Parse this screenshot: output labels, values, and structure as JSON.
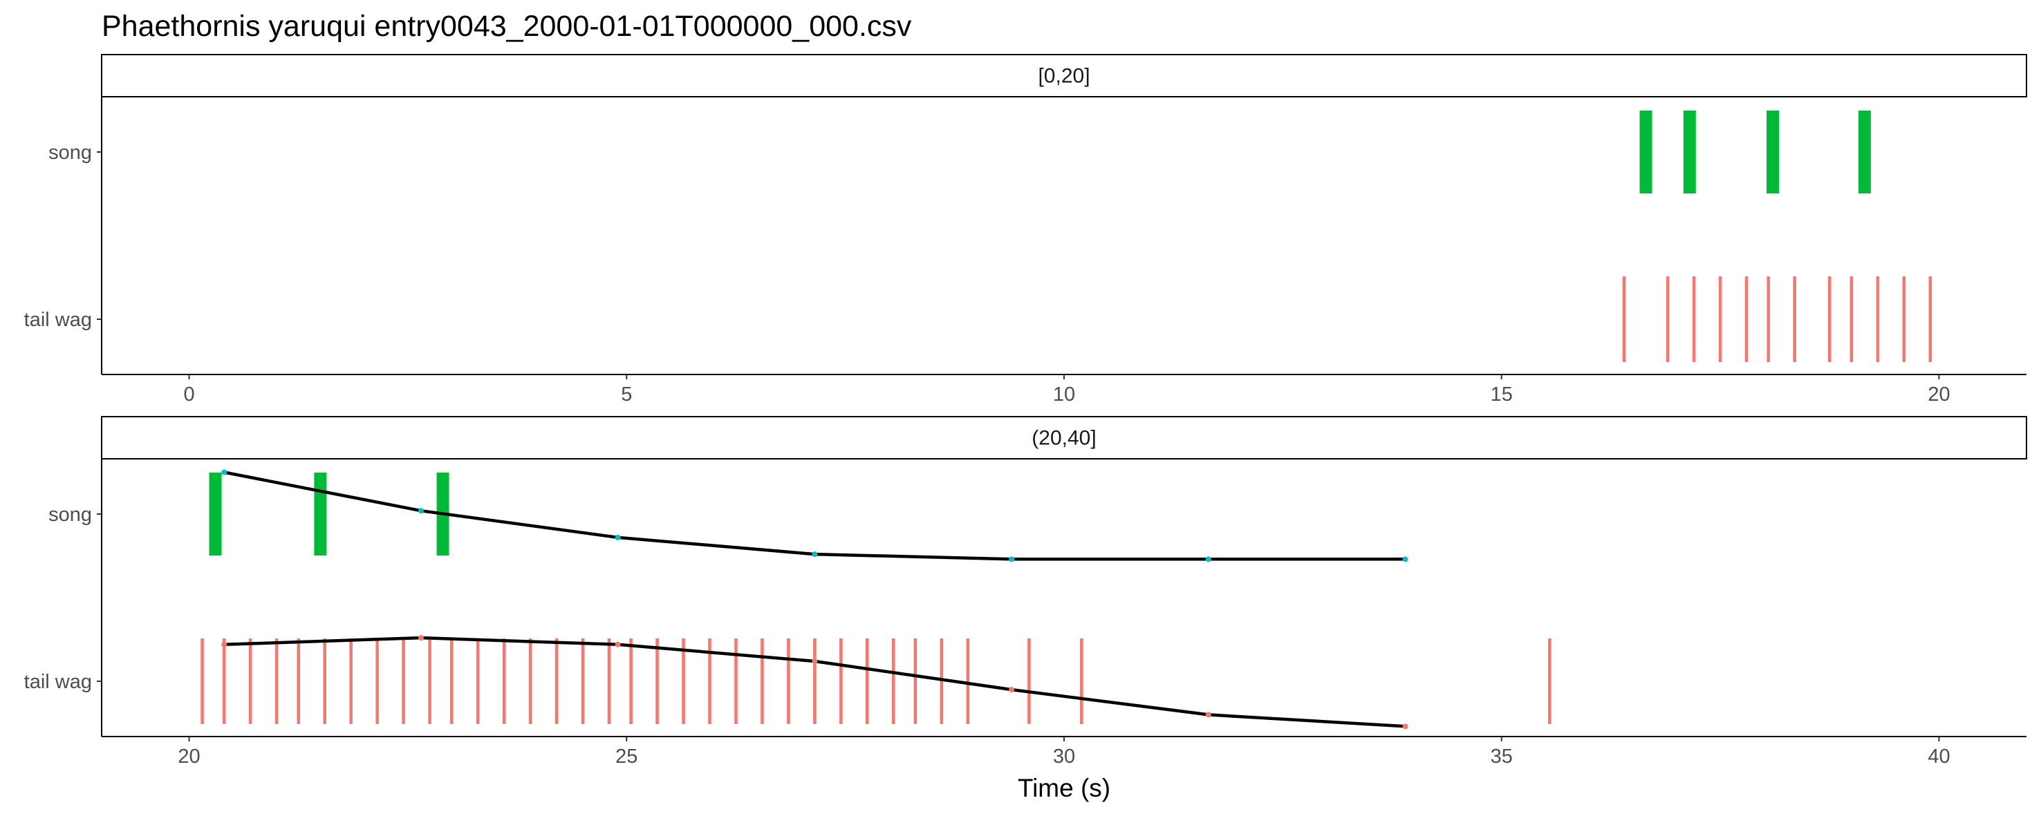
{
  "title": "Phaethornis yaruqui   entry0043_2000-01-01T000000_000.csv",
  "colors": {
    "song": "#00BA38",
    "tail_wag": "#F8766D",
    "trend_line": "#000000",
    "song_trend_points": "#00BFC4",
    "tail_trend_points": "#F8766D",
    "panel_border": "#000000",
    "tick_text": "#4d4d4d"
  },
  "chart_data": {
    "type": "scatter",
    "x_label": "Time (s)",
    "y_categories": [
      "song",
      "tail wag"
    ],
    "grid": false,
    "legend": "none",
    "panels": [
      {
        "strip": "[0,20]",
        "xlim": [
          -1,
          21
        ],
        "x_ticks": [
          0,
          5,
          10,
          15,
          20
        ],
        "song_events": [
          16.65,
          17.15,
          18.1,
          19.15
        ],
        "tail_wag_events": [
          16.4,
          16.9,
          17.2,
          17.5,
          17.8,
          18.05,
          18.35,
          18.75,
          19.0,
          19.3,
          19.6,
          19.9
        ],
        "song_trend": [],
        "tail_wag_trend": []
      },
      {
        "strip": "(20,40]",
        "xlim": [
          19,
          41
        ],
        "x_ticks": [
          20,
          25,
          30,
          35,
          40
        ],
        "song_events": [
          20.3,
          21.5,
          22.9
        ],
        "tail_wag_events": [
          20.15,
          20.4,
          20.7,
          21.0,
          21.25,
          21.55,
          21.85,
          22.15,
          22.45,
          22.75,
          23.0,
          23.3,
          23.6,
          23.9,
          24.2,
          24.5,
          24.8,
          25.05,
          25.35,
          25.65,
          25.95,
          26.25,
          26.55,
          26.85,
          27.15,
          27.45,
          27.75,
          28.05,
          28.3,
          28.6,
          28.9,
          29.6,
          30.2,
          35.55
        ],
        "song_trend": [
          {
            "x": 20.4,
            "y": 1.25
          },
          {
            "x": 22.65,
            "y": 1.02
          },
          {
            "x": 24.9,
            "y": 0.86
          },
          {
            "x": 27.15,
            "y": 0.76
          },
          {
            "x": 29.4,
            "y": 0.73
          },
          {
            "x": 31.65,
            "y": 0.73
          },
          {
            "x": 33.9,
            "y": 0.73
          }
        ],
        "tail_wag_trend": [
          {
            "x": 20.4,
            "y": 0.22
          },
          {
            "x": 22.65,
            "y": 0.26
          },
          {
            "x": 24.9,
            "y": 0.22
          },
          {
            "x": 27.15,
            "y": 0.12
          },
          {
            "x": 29.4,
            "y": -0.05
          },
          {
            "x": 31.65,
            "y": -0.2
          },
          {
            "x": 33.9,
            "y": -0.27
          }
        ]
      }
    ]
  }
}
